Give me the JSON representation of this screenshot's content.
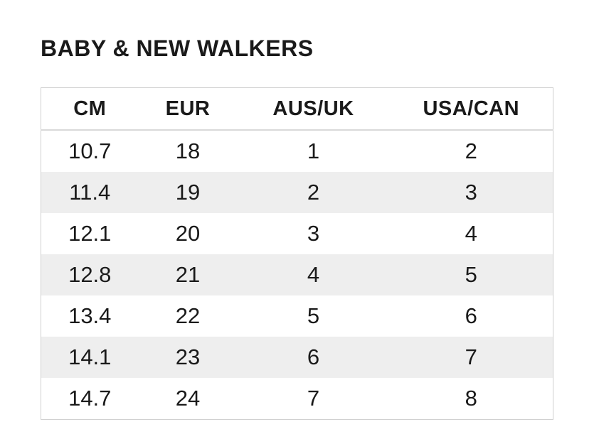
{
  "section": {
    "title": "BABY & NEW WALKERS"
  },
  "size_table": {
    "columns": [
      "CM",
      "EUR",
      "AUS/UK",
      "USA/CAN"
    ],
    "rows": [
      [
        "10.7",
        "18",
        "1",
        "2"
      ],
      [
        "11.4",
        "19",
        "2",
        "3"
      ],
      [
        "12.1",
        "20",
        "3",
        "4"
      ],
      [
        "12.8",
        "21",
        "4",
        "5"
      ],
      [
        "13.4",
        "22",
        "5",
        "6"
      ],
      [
        "14.1",
        "23",
        "6",
        "7"
      ],
      [
        "14.7",
        "24",
        "7",
        "8"
      ]
    ]
  },
  "colors": {
    "text": "#1a1a1a",
    "stripe": "#eeeeee",
    "table_border": "#cfcfcf",
    "header_separator": "#d9d9d9",
    "background": "#ffffff"
  }
}
